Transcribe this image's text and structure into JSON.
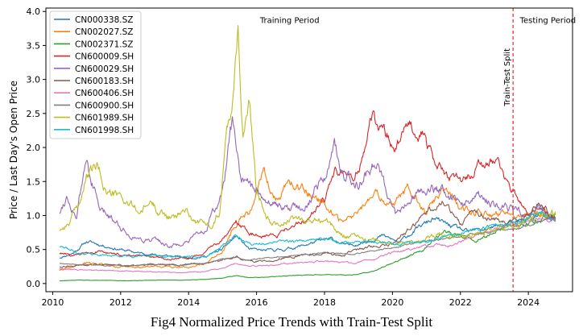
{
  "caption": "Fig4 Normalized Price Trends with Train-Test Split",
  "chart_data": {
    "type": "line",
    "title": "",
    "xlabel": "",
    "ylabel": "Price / Last Day's Open Price",
    "xlim": [
      2009.8,
      2025.3
    ],
    "ylim": [
      -0.12,
      4.05
    ],
    "xticks": [
      2010,
      2012,
      2014,
      2016,
      2018,
      2020,
      2022,
      2024
    ],
    "yticks": [
      0.0,
      0.5,
      1.0,
      1.5,
      2.0,
      2.5,
      3.0,
      3.5,
      4.0
    ],
    "ytick_labels": [
      "0.0",
      "0.5",
      "1.0",
      "1.5",
      "2.0",
      "2.5",
      "3.0",
      "3.5",
      "4.0"
    ],
    "split": {
      "x": 2023.55,
      "label": "Train-Test Split",
      "color": "#e8393d"
    },
    "annotations": [
      {
        "text": "Training Period",
        "x": 2016.1,
        "y": 3.83
      },
      {
        "text": "Testing Period",
        "x": 2023.75,
        "y": 3.83
      }
    ],
    "legend": {
      "position": "top-left"
    },
    "series": [
      {
        "name": "CN000338.SZ",
        "color": "#1f77b4",
        "seed": 11,
        "vol": 0.028,
        "x": [
          2010.2,
          2010.6,
          2011.0,
          2011.5,
          2012.0,
          2012.5,
          2013.0,
          2013.5,
          2014.0,
          2014.5,
          2015.0,
          2015.4,
          2015.8,
          2016.2,
          2016.8,
          2017.3,
          2017.8,
          2018.2,
          2018.7,
          2019.2,
          2019.7,
          2020.2,
          2020.7,
          2021.2,
          2021.7,
          2022.2,
          2022.7,
          2023.2,
          2023.6,
          2024.0,
          2024.4,
          2024.8
        ],
        "y": [
          0.38,
          0.45,
          0.62,
          0.56,
          0.5,
          0.45,
          0.42,
          0.4,
          0.38,
          0.4,
          0.5,
          0.7,
          0.5,
          0.48,
          0.5,
          0.55,
          0.62,
          0.65,
          0.55,
          0.62,
          0.7,
          0.6,
          0.8,
          0.95,
          0.85,
          0.75,
          0.8,
          0.85,
          0.9,
          0.95,
          1.02,
          0.95
        ]
      },
      {
        "name": "CN002027.SZ",
        "color": "#ff7f0e",
        "seed": 22,
        "vol": 0.035,
        "x": [
          2010.2,
          2010.6,
          2011.0,
          2011.5,
          2012.0,
          2012.5,
          2013.0,
          2013.5,
          2014.0,
          2014.5,
          2015.0,
          2015.4,
          2015.8,
          2016.2,
          2016.6,
          2017.0,
          2017.5,
          2018.0,
          2018.5,
          2019.0,
          2019.5,
          2020.0,
          2020.5,
          2021.0,
          2021.5,
          2022.0,
          2022.5,
          2023.0,
          2023.6,
          2024.0,
          2024.4,
          2024.8
        ],
        "y": [
          0.2,
          0.24,
          0.3,
          0.28,
          0.25,
          0.24,
          0.26,
          0.24,
          0.25,
          0.3,
          0.5,
          0.9,
          1.05,
          1.6,
          1.25,
          1.45,
          1.35,
          1.2,
          0.9,
          1.05,
          1.3,
          1.15,
          1.4,
          1.05,
          1.35,
          1.15,
          1.05,
          1.0,
          0.95,
          1.0,
          1.05,
          0.95
        ]
      },
      {
        "name": "CN002371.SZ",
        "color": "#2ca02c",
        "seed": 33,
        "vol": 0.03,
        "x": [
          2010.2,
          2010.8,
          2011.5,
          2012.2,
          2013.0,
          2013.8,
          2014.5,
          2015.0,
          2015.4,
          2015.8,
          2016.5,
          2017.2,
          2018.0,
          2018.8,
          2019.5,
          2020.0,
          2020.5,
          2021.0,
          2021.5,
          2022.0,
          2022.5,
          2023.0,
          2023.6,
          2024.0,
          2024.4,
          2024.8
        ],
        "y": [
          0.04,
          0.05,
          0.05,
          0.04,
          0.05,
          0.05,
          0.06,
          0.08,
          0.12,
          0.09,
          0.1,
          0.12,
          0.13,
          0.12,
          0.18,
          0.3,
          0.4,
          0.55,
          0.75,
          0.7,
          0.65,
          0.75,
          0.85,
          0.9,
          0.95,
          1.0
        ]
      },
      {
        "name": "CN600009.SH",
        "color": "#d62728",
        "seed": 44,
        "vol": 0.03,
        "x": [
          2010.2,
          2010.6,
          2011.0,
          2011.5,
          2012.0,
          2012.5,
          2013.0,
          2013.5,
          2014.0,
          2014.5,
          2015.0,
          2015.4,
          2015.8,
          2016.2,
          2016.6,
          2017.0,
          2017.5,
          2018.0,
          2018.3,
          2018.8,
          2019.0,
          2019.4,
          2019.8,
          2020.1,
          2020.5,
          2020.9,
          2021.2,
          2021.6,
          2022.0,
          2022.5,
          2023.0,
          2023.3,
          2023.6,
          2024.0,
          2024.4,
          2024.8
        ],
        "y": [
          0.45,
          0.4,
          0.48,
          0.46,
          0.42,
          0.4,
          0.38,
          0.36,
          0.38,
          0.45,
          0.65,
          0.9,
          0.75,
          0.7,
          0.72,
          0.85,
          0.95,
          1.2,
          1.65,
          1.45,
          1.7,
          2.45,
          2.2,
          1.95,
          2.35,
          2.25,
          1.8,
          1.6,
          1.5,
          1.7,
          1.85,
          1.55,
          1.3,
          1.0,
          1.1,
          0.95
        ]
      },
      {
        "name": "CN600029.SH",
        "color": "#9467bd",
        "seed": 55,
        "vol": 0.04,
        "x": [
          2010.2,
          2010.4,
          2010.7,
          2011.0,
          2011.4,
          2011.8,
          2012.2,
          2012.6,
          2013.0,
          2013.5,
          2014.0,
          2014.5,
          2015.0,
          2015.3,
          2015.5,
          2015.8,
          2016.2,
          2016.6,
          2017.0,
          2017.5,
          2018.0,
          2018.3,
          2018.6,
          2019.0,
          2019.5,
          2019.8,
          2020.1,
          2020.5,
          2021.0,
          2021.5,
          2022.0,
          2022.5,
          2023.0,
          2023.6,
          2024.0,
          2024.4,
          2024.8
        ],
        "y": [
          1.05,
          1.3,
          1.0,
          1.8,
          1.05,
          0.95,
          0.75,
          0.65,
          0.65,
          0.55,
          0.6,
          0.8,
          1.3,
          2.35,
          1.6,
          1.4,
          1.3,
          1.15,
          1.1,
          1.2,
          1.6,
          2.0,
          1.5,
          1.55,
          1.8,
          1.5,
          1.05,
          1.2,
          1.4,
          1.35,
          1.2,
          1.25,
          1.2,
          1.05,
          1.0,
          1.1,
          0.95
        ]
      },
      {
        "name": "CN600183.SH",
        "color": "#8c564b",
        "seed": 66,
        "vol": 0.03,
        "x": [
          2010.2,
          2010.8,
          2011.5,
          2012.2,
          2013.0,
          2013.8,
          2014.5,
          2015.0,
          2015.4,
          2015.8,
          2016.5,
          2017.2,
          2018.0,
          2018.5,
          2019.0,
          2019.5,
          2020.0,
          2020.5,
          2021.0,
          2021.5,
          2022.0,
          2022.5,
          2023.0,
          2023.6,
          2024.0,
          2024.4,
          2024.8
        ],
        "y": [
          0.25,
          0.27,
          0.28,
          0.26,
          0.28,
          0.28,
          0.3,
          0.35,
          0.4,
          0.32,
          0.35,
          0.4,
          0.45,
          0.4,
          0.5,
          0.55,
          0.6,
          0.8,
          1.05,
          1.2,
          0.9,
          1.05,
          0.95,
          0.9,
          1.0,
          1.15,
          0.95
        ]
      },
      {
        "name": "CN600406.SH",
        "color": "#e377c2",
        "seed": 77,
        "vol": 0.025,
        "x": [
          2010.2,
          2010.8,
          2011.5,
          2012.2,
          2013.0,
          2013.8,
          2014.5,
          2015.0,
          2015.4,
          2015.8,
          2016.5,
          2017.2,
          2018.0,
          2018.8,
          2019.5,
          2020.0,
          2020.5,
          2021.0,
          2021.5,
          2022.0,
          2022.5,
          2023.0,
          2023.6,
          2024.0,
          2024.4,
          2024.8
        ],
        "y": [
          0.22,
          0.2,
          0.19,
          0.18,
          0.17,
          0.16,
          0.18,
          0.22,
          0.3,
          0.25,
          0.27,
          0.3,
          0.33,
          0.3,
          0.36,
          0.45,
          0.5,
          0.55,
          0.55,
          0.6,
          0.7,
          0.8,
          0.85,
          0.9,
          0.95,
          0.92
        ]
      },
      {
        "name": "CN600900.SH",
        "color": "#7f7f7f",
        "seed": 88,
        "vol": 0.015,
        "x": [
          2010.2,
          2010.8,
          2011.5,
          2012.2,
          2013.0,
          2013.8,
          2014.5,
          2015.0,
          2015.4,
          2015.8,
          2016.5,
          2017.2,
          2018.0,
          2018.8,
          2019.5,
          2020.0,
          2020.5,
          2021.0,
          2021.5,
          2022.0,
          2022.5,
          2023.0,
          2023.6,
          2024.0,
          2024.4,
          2024.8
        ],
        "y": [
          0.3,
          0.28,
          0.27,
          0.26,
          0.28,
          0.27,
          0.3,
          0.35,
          0.38,
          0.34,
          0.38,
          0.42,
          0.45,
          0.43,
          0.48,
          0.52,
          0.58,
          0.62,
          0.66,
          0.7,
          0.74,
          0.78,
          0.8,
          0.85,
          0.92,
          0.95
        ]
      },
      {
        "name": "CN601989.SH",
        "color": "#bcbd22",
        "seed": 99,
        "vol": 0.04,
        "x": [
          2010.2,
          2010.5,
          2010.8,
          2011.0,
          2011.3,
          2011.6,
          2012.0,
          2012.3,
          2012.6,
          2012.9,
          2013.2,
          2013.6,
          2013.9,
          2014.2,
          2014.6,
          2014.9,
          2015.1,
          2015.3,
          2015.45,
          2015.6,
          2015.8,
          2016.0,
          2016.4,
          2016.8,
          2017.2,
          2017.6,
          2018.0,
          2018.4,
          2018.8,
          2019.2,
          2019.6,
          2020.0,
          2020.4,
          2020.8,
          2021.2,
          2021.6,
          2022.0,
          2022.5,
          2023.0,
          2023.6,
          2024.0,
          2024.4,
          2024.8
        ],
        "y": [
          0.8,
          0.9,
          1.2,
          1.55,
          1.7,
          1.35,
          1.25,
          1.15,
          1.05,
          1.2,
          1.05,
          0.95,
          1.1,
          0.92,
          0.85,
          1.05,
          2.2,
          2.75,
          3.9,
          2.2,
          2.55,
          1.4,
          0.95,
          0.9,
          0.95,
          0.92,
          0.95,
          0.75,
          0.7,
          0.65,
          0.62,
          0.58,
          0.6,
          0.65,
          0.7,
          0.75,
          0.7,
          0.72,
          0.78,
          0.85,
          0.95,
          1.05,
          1.0
        ]
      },
      {
        "name": "CN601998.SH",
        "color": "#17becf",
        "seed": 111,
        "vol": 0.025,
        "x": [
          2010.2,
          2010.8,
          2011.5,
          2012.2,
          2013.0,
          2013.8,
          2014.5,
          2015.0,
          2015.4,
          2015.8,
          2016.5,
          2017.2,
          2018.0,
          2018.8,
          2019.5,
          2020.0,
          2020.5,
          2021.0,
          2021.5,
          2022.0,
          2022.5,
          2023.0,
          2023.6,
          2024.0,
          2024.4,
          2024.8
        ],
        "y": [
          0.55,
          0.45,
          0.42,
          0.4,
          0.42,
          0.38,
          0.42,
          0.55,
          0.7,
          0.58,
          0.6,
          0.62,
          0.65,
          0.6,
          0.62,
          0.58,
          0.6,
          0.62,
          0.7,
          0.75,
          0.8,
          0.85,
          0.9,
          0.95,
          1.05,
          0.98
        ]
      }
    ]
  }
}
